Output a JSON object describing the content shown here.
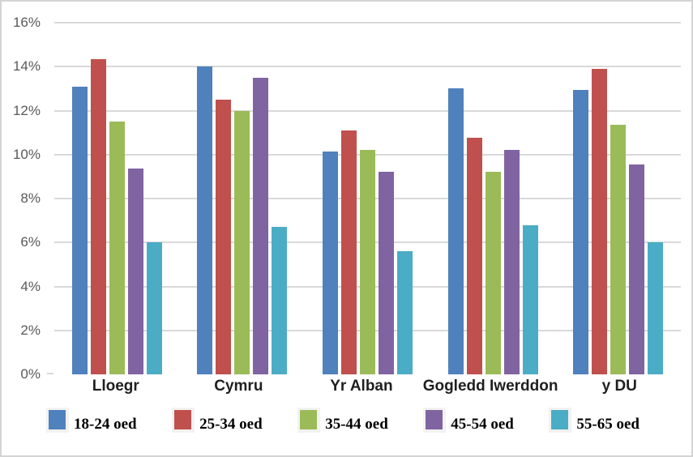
{
  "chart_data": {
    "type": "bar",
    "title": "",
    "xlabel": "",
    "ylabel": "",
    "categories": [
      "Lloegr",
      "Cymru",
      "Yr Alban",
      "Gogledd Iwerddon",
      "y DU"
    ],
    "series": [
      {
        "name": "18-24 oed",
        "color": "#4F81BD",
        "values": [
          13.1,
          14.0,
          10.15,
          13.0,
          12.95
        ]
      },
      {
        "name": "25-34 oed",
        "color": "#C0504D",
        "values": [
          14.35,
          12.5,
          11.1,
          10.75,
          13.9
        ]
      },
      {
        "name": "35-44 oed",
        "color": "#9BBB59",
        "values": [
          11.5,
          12.0,
          10.2,
          9.2,
          11.35
        ]
      },
      {
        "name": "45-54 oed",
        "color": "#8064A2",
        "values": [
          9.35,
          13.5,
          9.2,
          10.2,
          9.55
        ]
      },
      {
        "name": "55-65 oed",
        "color": "#4BACC6",
        "values": [
          6.0,
          6.7,
          5.6,
          6.8,
          6.0
        ]
      }
    ],
    "ylim": [
      0,
      16
    ],
    "ytick_step": 2,
    "yticks": [
      "0%",
      "2%",
      "4%",
      "6%",
      "8%",
      "10%",
      "12%",
      "14%",
      "16%"
    ],
    "grid": true,
    "legend_position": "bottom",
    "gridline_color": "#D9D9D9",
    "axis_label_color": "#595959",
    "category_label_color": "#1F1F1F",
    "border_color": "#D4D4D4",
    "background_color": "#FFFFFF"
  }
}
